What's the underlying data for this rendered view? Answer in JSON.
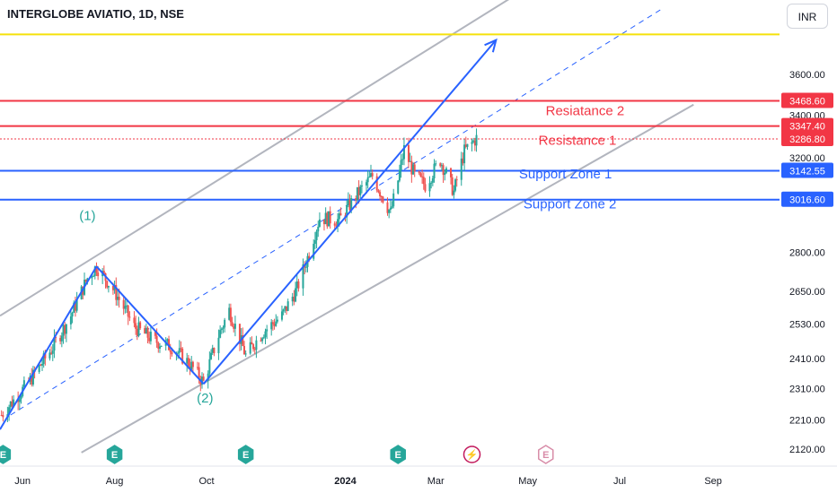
{
  "header": {
    "symbol_title": "INTERGLOBE AVIATIO, 1D, NSE",
    "currency_button": "INR"
  },
  "colors": {
    "up": "#26a69a",
    "down": "#ef5350",
    "blue": "#2962ff",
    "red": "#f23645",
    "yellow": "#f5e10a",
    "gray": "#b2b5be",
    "wave_label": "#26a69a"
  },
  "chart_data": {
    "type": "candlestick",
    "price_axis": {
      "scale": "log",
      "range": [
        2070,
        4000
      ],
      "ticks": [
        3600,
        3400,
        3200,
        2800,
        2650,
        2530,
        2410,
        2310,
        2210,
        2120
      ],
      "tick_labels": [
        "3600.00",
        "3400.00",
        "3200.00",
        "2800.00",
        "2650.00",
        "2530.00",
        "2410.00",
        "2310.00",
        "2210.00",
        "2120.00"
      ]
    },
    "time_axis": {
      "start": "2023-05-17",
      "end": "2024-10-15",
      "tick_labels": [
        {
          "label": "Jun",
          "date": "2023-06-01"
        },
        {
          "label": "Aug",
          "date": "2023-08-01"
        },
        {
          "label": "Oct",
          "date": "2023-10-01"
        },
        {
          "label": "2024",
          "date": "2024-01-01",
          "bold": true
        },
        {
          "label": "Mar",
          "date": "2024-03-01"
        },
        {
          "label": "May",
          "date": "2024-05-01"
        },
        {
          "label": "Jul",
          "date": "2024-07-01"
        },
        {
          "label": "Sep",
          "date": "2024-09-01"
        }
      ]
    },
    "price_path": [
      {
        "date": "2023-05-18",
        "price": 2225
      },
      {
        "date": "2023-06-05",
        "price": 2330
      },
      {
        "date": "2023-06-20",
        "price": 2440
      },
      {
        "date": "2023-07-03",
        "price": 2560
      },
      {
        "date": "2023-07-14",
        "price": 2700
      },
      {
        "date": "2023-07-20",
        "price": 2745
      },
      {
        "date": "2023-08-01",
        "price": 2650
      },
      {
        "date": "2023-08-14",
        "price": 2520
      },
      {
        "date": "2023-08-28",
        "price": 2470
      },
      {
        "date": "2023-09-08",
        "price": 2450
      },
      {
        "date": "2023-09-20",
        "price": 2390
      },
      {
        "date": "2023-09-29",
        "price": 2330
      },
      {
        "date": "2023-10-09",
        "price": 2490
      },
      {
        "date": "2023-10-16",
        "price": 2580
      },
      {
        "date": "2023-10-27",
        "price": 2420
      },
      {
        "date": "2023-11-07",
        "price": 2500
      },
      {
        "date": "2023-11-20",
        "price": 2560
      },
      {
        "date": "2023-11-30",
        "price": 2660
      },
      {
        "date": "2023-12-07",
        "price": 2780
      },
      {
        "date": "2023-12-15",
        "price": 2940
      },
      {
        "date": "2023-12-28",
        "price": 2930
      },
      {
        "date": "2024-01-09",
        "price": 3040
      },
      {
        "date": "2024-01-19",
        "price": 3120
      },
      {
        "date": "2024-01-31",
        "price": 2960
      },
      {
        "date": "2024-02-05",
        "price": 3100
      },
      {
        "date": "2024-02-09",
        "price": 3240
      },
      {
        "date": "2024-02-16",
        "price": 3120
      },
      {
        "date": "2024-02-23",
        "price": 3080
      },
      {
        "date": "2024-03-04",
        "price": 3190
      },
      {
        "date": "2024-03-13",
        "price": 3050
      },
      {
        "date": "2024-03-20",
        "price": 3230
      },
      {
        "date": "2024-03-28",
        "price": 3290
      }
    ],
    "horizontal_levels": [
      {
        "price": 3810,
        "label": "",
        "color": "#f5e10a"
      },
      {
        "price": 3468.6,
        "label": "3468.60",
        "color": "#f23645"
      },
      {
        "price": 3347.4,
        "label": "3347.40",
        "color": "#f23645"
      },
      {
        "price": 3286.8,
        "label": "3286.80",
        "color": "#f23645",
        "dotted": true
      },
      {
        "price": 3142.55,
        "label": "3142.55",
        "color": "#2962ff"
      },
      {
        "price": 3016.6,
        "label": "3016.60",
        "color": "#2962ff"
      }
    ],
    "annotations": [
      {
        "text": "Resiatance 2",
        "date": "2024-06-08",
        "price": 3400,
        "color": "#f23645"
      },
      {
        "text": "Resistance 1",
        "date": "2024-06-03",
        "price": 3260,
        "color": "#f23645"
      },
      {
        "text": "Support  Zone 1",
        "date": "2024-05-26",
        "price": 3108,
        "color": "#2962ff"
      },
      {
        "text": "Support  Zone 2",
        "date": "2024-05-29",
        "price": 2980,
        "color": "#2962ff"
      },
      {
        "text": "(1)",
        "date": "2023-07-14",
        "price": 2930,
        "color": "#26a69a"
      },
      {
        "text": "(2)",
        "date": "2023-09-30",
        "price": 2265,
        "color": "#26a69a"
      }
    ],
    "wave_path": [
      {
        "date": "2023-05-17",
        "price": 2180
      },
      {
        "date": "2023-07-20",
        "price": 2745
      },
      {
        "date": "2023-09-29",
        "price": 2325
      },
      {
        "date": "2024-04-10",
        "price": 3780
      }
    ],
    "channel_lines": [
      {
        "from": {
          "date": "2023-05-17",
          "price": 2560
        },
        "to": {
          "date": "2024-04-27",
          "price": 4050
        },
        "style": "solid"
      },
      {
        "from": {
          "date": "2023-07-10",
          "price": 2110
        },
        "to": {
          "date": "2024-08-19",
          "price": 3450
        },
        "style": "solid"
      },
      {
        "from": {
          "date": "2023-05-24",
          "price": 2225
        },
        "to": {
          "date": "2024-07-29",
          "price": 3950
        },
        "style": "dashed"
      }
    ],
    "event_markers": [
      {
        "date": "2023-05-19",
        "symbol": "E",
        "type": "earnings"
      },
      {
        "date": "2023-08-01",
        "symbol": "E",
        "type": "earnings"
      },
      {
        "date": "2023-10-27",
        "symbol": "E",
        "type": "earnings"
      },
      {
        "date": "2024-02-05",
        "symbol": "E",
        "type": "earnings"
      },
      {
        "date": "2024-03-25",
        "symbol": "⚡",
        "type": "dividend"
      },
      {
        "date": "2024-05-13",
        "symbol": "E",
        "type": "earnings-upcoming"
      }
    ]
  }
}
